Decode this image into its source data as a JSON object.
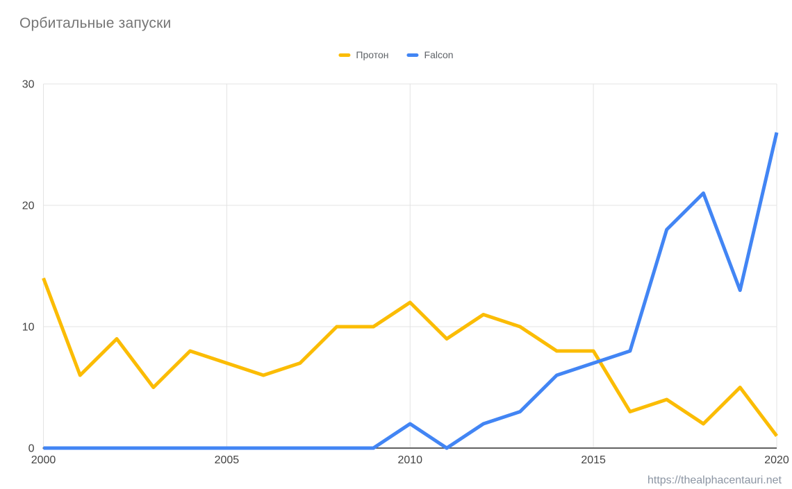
{
  "title": "Орбитальные запуски",
  "watermark": "https://thealphacentauri.net",
  "colors": {
    "proton": "#FBBC04",
    "falcon": "#4285F4",
    "title_text": "#757575",
    "legend_text": "#5f6368",
    "tick_text": "#424242",
    "gridline": "#e3e3e3",
    "axis_line": "#616161",
    "watermark_text": "#8b95a3"
  },
  "chart_data": {
    "type": "line",
    "title": "Орбитальные запуски",
    "xlabel": "",
    "ylabel": "",
    "x": [
      2000,
      2001,
      2002,
      2003,
      2004,
      2005,
      2006,
      2007,
      2008,
      2009,
      2010,
      2011,
      2012,
      2013,
      2014,
      2015,
      2016,
      2017,
      2018,
      2019,
      2020
    ],
    "series": [
      {
        "name": "Протон",
        "color": "#FBBC04",
        "values": [
          14,
          6,
          9,
          5,
          8,
          7,
          6,
          7,
          10,
          10,
          12,
          9,
          11,
          10,
          8,
          8,
          3,
          4,
          2,
          5,
          1
        ]
      },
      {
        "name": "Falcon",
        "color": "#4285F4",
        "values": [
          0,
          0,
          0,
          0,
          0,
          0,
          0,
          0,
          0,
          0,
          2,
          0,
          2,
          3,
          6,
          7,
          8,
          18,
          21,
          13,
          26
        ]
      }
    ],
    "x_ticks": [
      2000,
      2005,
      2010,
      2015,
      2020
    ],
    "y_ticks": [
      0,
      10,
      20,
      30
    ],
    "xlim": [
      2000,
      2020
    ],
    "ylim": [
      0,
      30
    ],
    "grid": true,
    "legend_position": "top-center"
  }
}
